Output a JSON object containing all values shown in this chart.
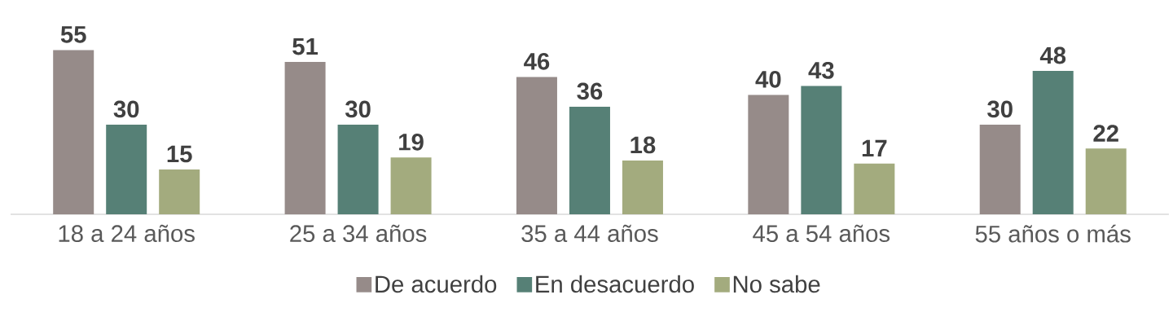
{
  "chart_data": {
    "type": "bar",
    "categories": [
      "18 a 24 años",
      "25 a 34 años",
      "35 a 44 años",
      "45 a 54 años",
      "55 años o más"
    ],
    "series": [
      {
        "name": "De acuerdo",
        "color": "#968b89",
        "values": [
          55,
          51,
          46,
          40,
          30
        ]
      },
      {
        "name": "En desacuerdo",
        "color": "#568076",
        "values": [
          30,
          30,
          36,
          43,
          48
        ]
      },
      {
        "name": "No sabe",
        "color": "#a3ab7e",
        "values": [
          15,
          19,
          18,
          17,
          22
        ]
      }
    ],
    "data_labels": true,
    "legend": "bottom",
    "tick_labels": "x"
  }
}
